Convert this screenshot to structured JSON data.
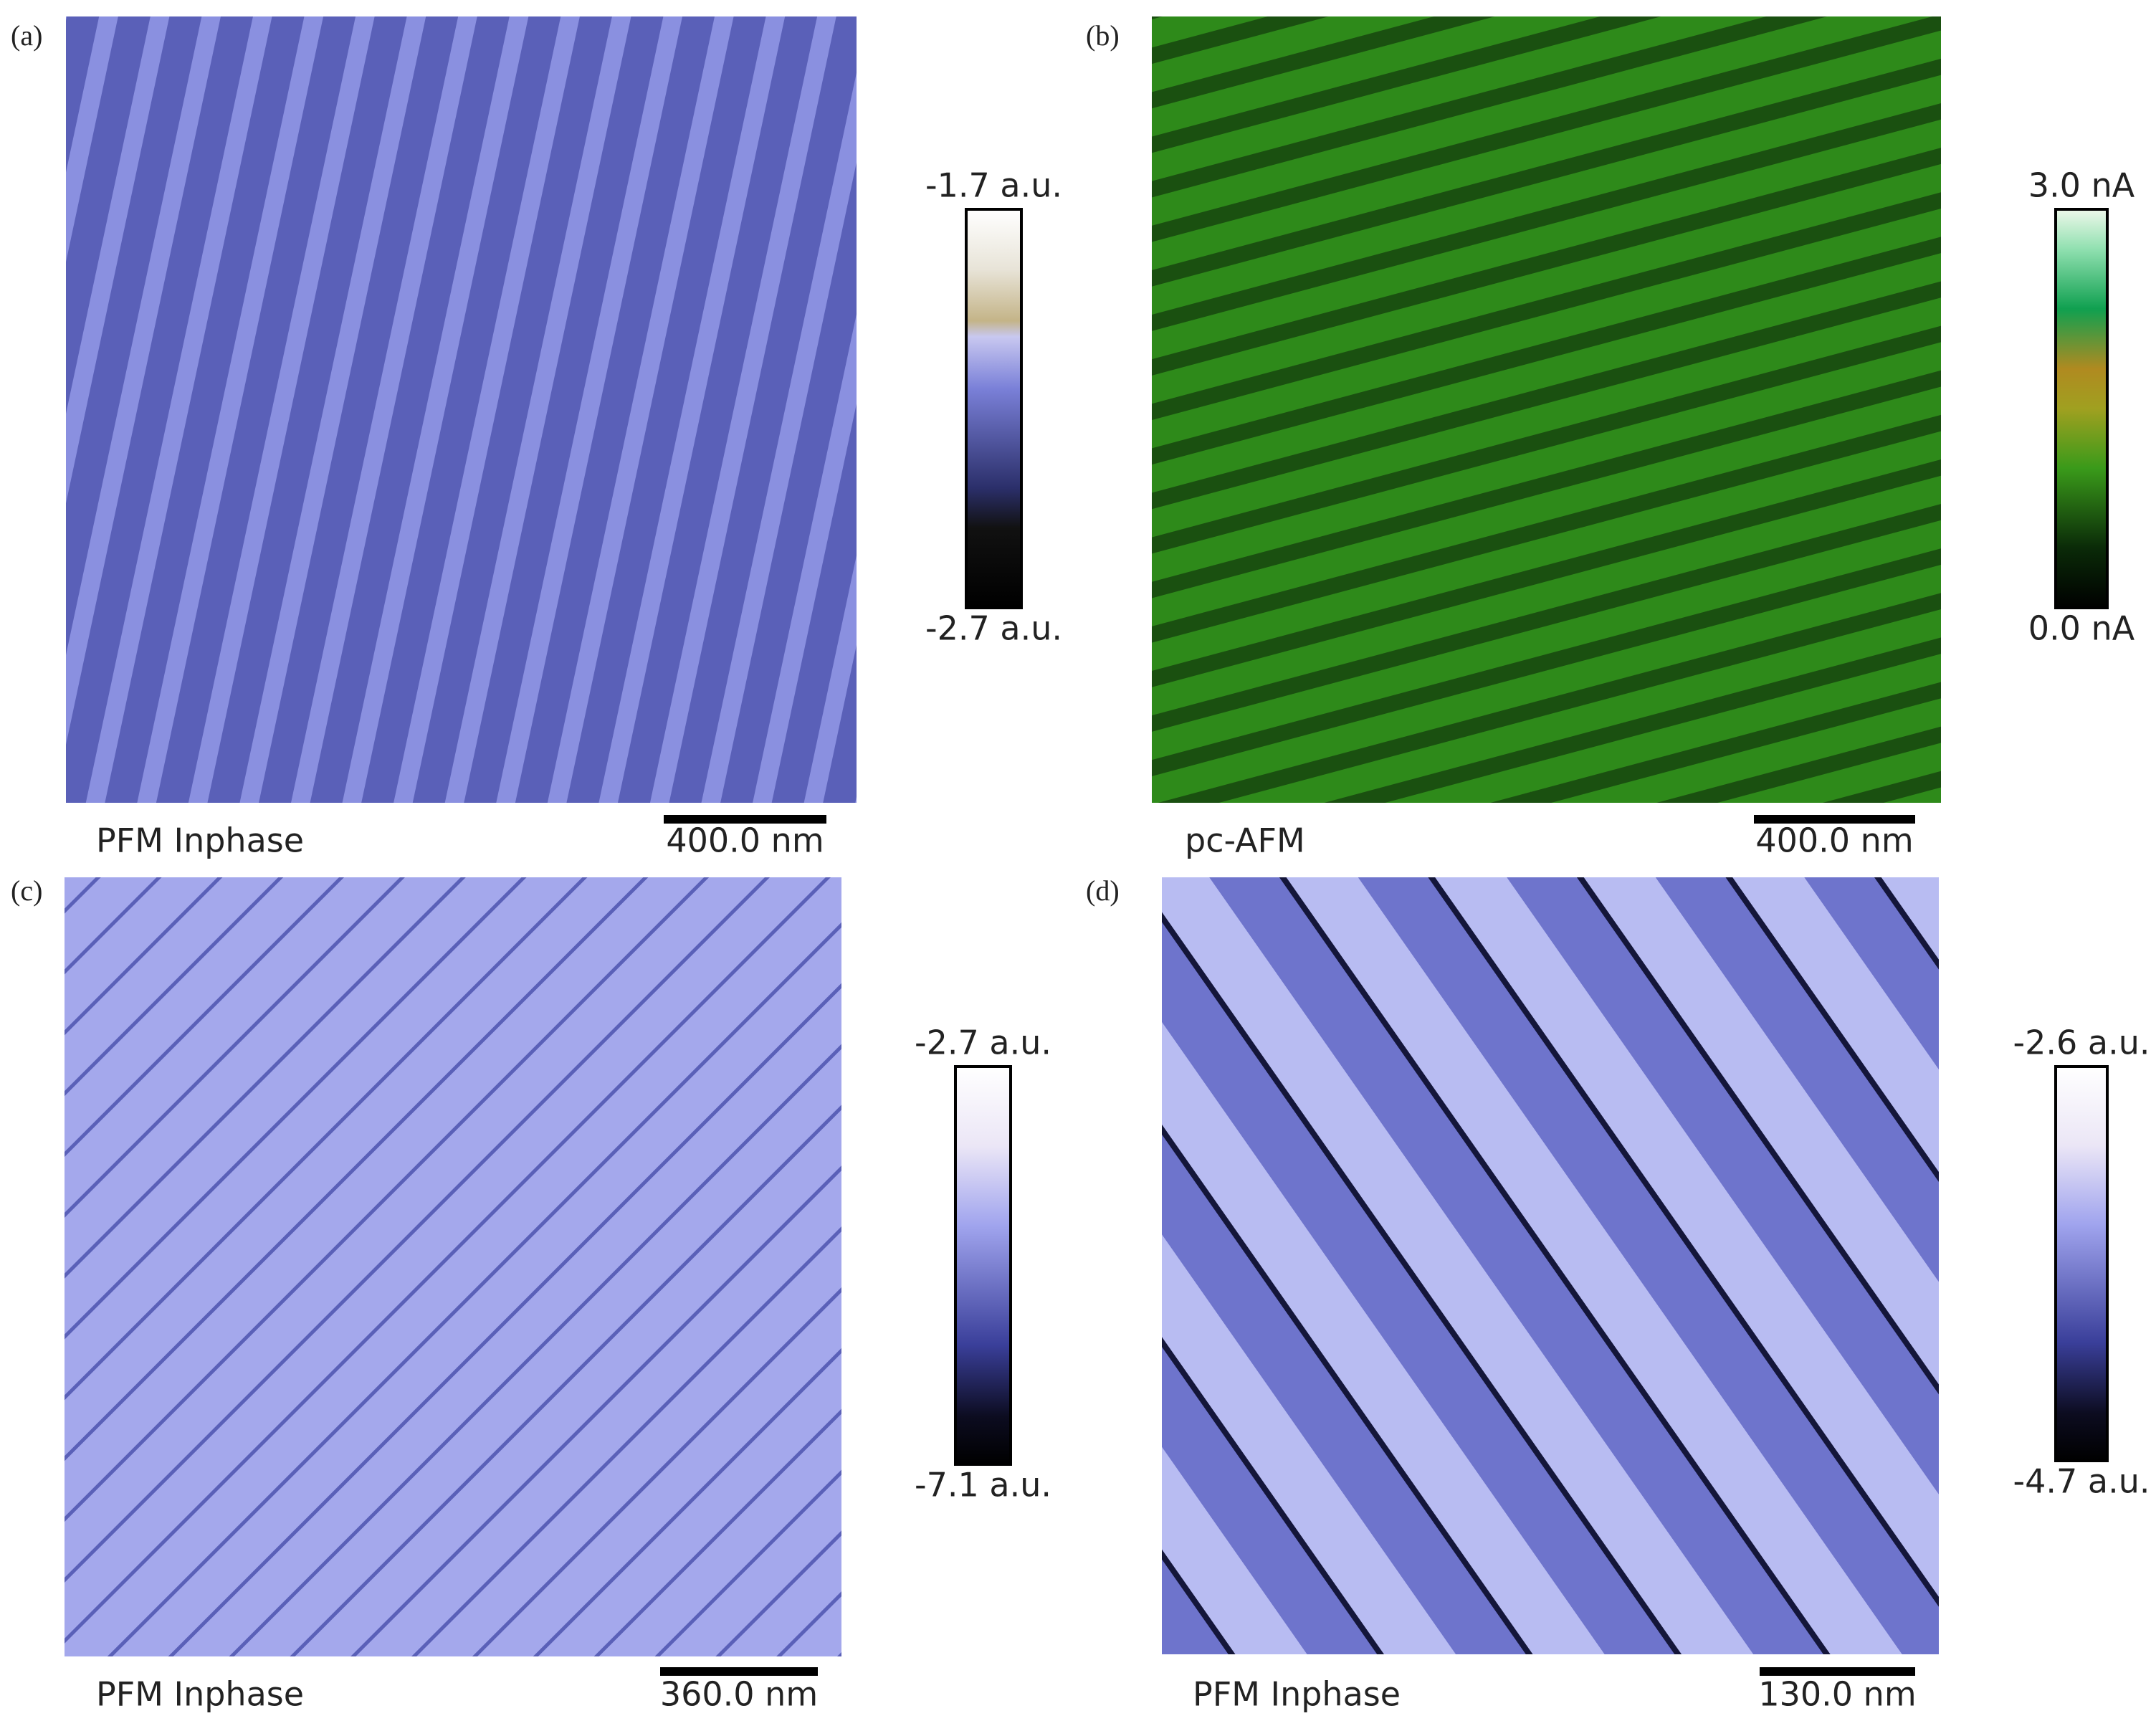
{
  "panels": [
    {
      "label": "(a)",
      "caption": "PFM Inphase",
      "scale_bar": "400.0 nm",
      "colorbar": {
        "max": "-1.7 a.u.",
        "min": "-2.7 a.u."
      }
    },
    {
      "label": "(b)",
      "caption": "pc-AFM",
      "scale_bar": "400.0 nm",
      "colorbar": {
        "max": "3.0 nA",
        "min": "0.0 nA"
      }
    },
    {
      "label": "(c)",
      "caption": "PFM Inphase",
      "scale_bar": "360.0 nm",
      "colorbar": {
        "max": "-2.7 a.u.",
        "min": "-7.1 a.u."
      }
    },
    {
      "label": "(d)",
      "caption": "PFM Inphase",
      "scale_bar": "130.0 nm",
      "colorbar": {
        "max": "-2.6 a.u.",
        "min": "-4.7 a.u."
      }
    }
  ]
}
